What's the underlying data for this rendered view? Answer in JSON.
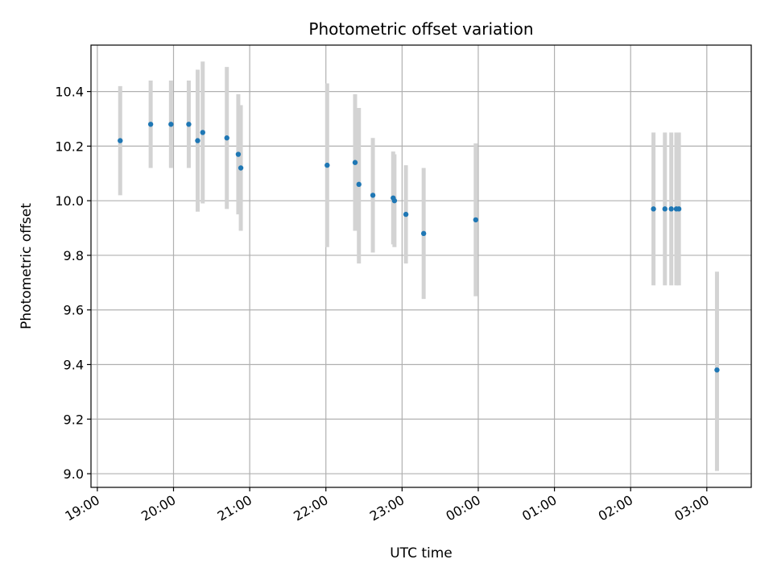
{
  "chart_data": {
    "type": "scatter",
    "title": "Photometric offset variation",
    "xlabel": "UTC time",
    "ylabel": "Photometric offset",
    "xlim": [
      "18:55",
      "03:35"
    ],
    "ylim": [
      8.95,
      10.57
    ],
    "xticks": [
      "19:00",
      "20:00",
      "21:00",
      "22:00",
      "23:00",
      "00:00",
      "01:00",
      "02:00",
      "03:00"
    ],
    "yticks": [
      "9.0",
      "9.2",
      "9.4",
      "9.6",
      "9.8",
      "10.0",
      "10.2",
      "10.4"
    ],
    "grid": true,
    "colors": {
      "point": "#1f77b4",
      "errorbar": "#d3d3d3",
      "grid": "#b0b0b0"
    },
    "points": [
      {
        "x": "19:18",
        "y": 10.22,
        "err_low": 10.02,
        "err_high": 10.42
      },
      {
        "x": "19:42",
        "y": 10.28,
        "err_low": 10.12,
        "err_high": 10.44
      },
      {
        "x": "19:58",
        "y": 10.28,
        "err_low": 10.12,
        "err_high": 10.44
      },
      {
        "x": "20:12",
        "y": 10.28,
        "err_low": 10.12,
        "err_high": 10.44
      },
      {
        "x": "20:19",
        "y": 10.22,
        "err_low": 9.96,
        "err_high": 10.48
      },
      {
        "x": "20:23",
        "y": 10.25,
        "err_low": 9.99,
        "err_high": 10.51
      },
      {
        "x": "20:42",
        "y": 10.23,
        "err_low": 9.97,
        "err_high": 10.49
      },
      {
        "x": "20:51",
        "y": 10.17,
        "err_low": 9.95,
        "err_high": 10.39
      },
      {
        "x": "20:53",
        "y": 10.12,
        "err_low": 9.89,
        "err_high": 10.35
      },
      {
        "x": "22:01",
        "y": 10.13,
        "err_low": 9.83,
        "err_high": 10.43
      },
      {
        "x": "22:23",
        "y": 10.14,
        "err_low": 9.89,
        "err_high": 10.39
      },
      {
        "x": "22:26",
        "y": 10.06,
        "err_low": 9.77,
        "err_high": 10.34
      },
      {
        "x": "22:37",
        "y": 10.02,
        "err_low": 9.81,
        "err_high": 10.23
      },
      {
        "x": "22:53",
        "y": 10.01,
        "err_low": 9.84,
        "err_high": 10.18
      },
      {
        "x": "22:54",
        "y": 10.0,
        "err_low": 9.83,
        "err_high": 10.17
      },
      {
        "x": "23:03",
        "y": 9.95,
        "err_low": 9.77,
        "err_high": 10.13
      },
      {
        "x": "23:17",
        "y": 9.88,
        "err_low": 9.64,
        "err_high": 10.12
      },
      {
        "x": "23:58",
        "y": 9.93,
        "err_low": 9.65,
        "err_high": 10.21
      },
      {
        "x": "02:18",
        "y": 9.97,
        "err_low": 9.69,
        "err_high": 10.25
      },
      {
        "x": "02:27",
        "y": 9.97,
        "err_low": 9.69,
        "err_high": 10.25
      },
      {
        "x": "02:32",
        "y": 9.97,
        "err_low": 9.69,
        "err_high": 10.25
      },
      {
        "x": "02:36",
        "y": 9.97,
        "err_low": 9.69,
        "err_high": 10.25
      },
      {
        "x": "02:38",
        "y": 9.97,
        "err_low": 9.69,
        "err_high": 10.25
      },
      {
        "x": "03:08",
        "y": 9.38,
        "err_low": 9.01,
        "err_high": 9.74
      }
    ]
  }
}
